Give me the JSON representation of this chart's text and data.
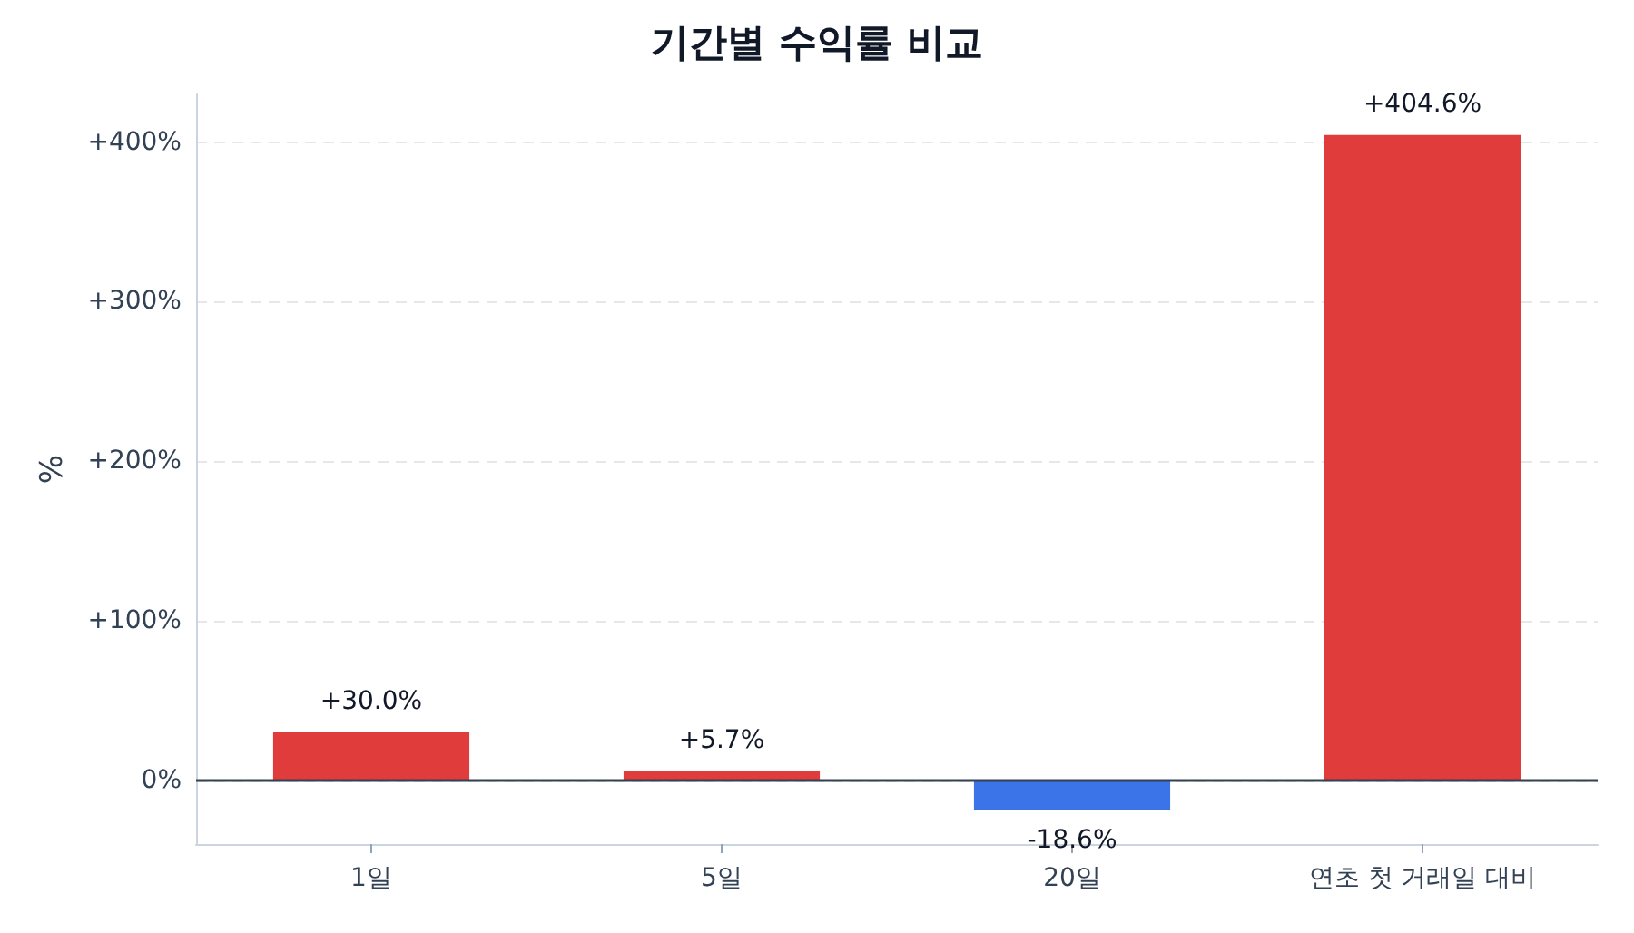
{
  "chart_data": {
    "type": "bar",
    "title": "기간별 수익률 비교",
    "ylabel": "%",
    "categories": [
      "1일",
      "5일",
      "20일",
      "연초 첫 거래일 대비"
    ],
    "values": [
      30.0,
      5.7,
      -18.6,
      404.6
    ],
    "colors": [
      "#e03c3c",
      "#e03c3c",
      "#3b73e8",
      "#e03c3c"
    ],
    "value_labels": [
      "+30.0%",
      "+5.7%",
      "-18.6%",
      "+404.6%"
    ],
    "ylim": [
      -40,
      430
    ],
    "yticks": [
      {
        "value": 0,
        "label": "0%"
      },
      {
        "value": 100,
        "label": "+100%"
      },
      {
        "value": 200,
        "label": "+200%"
      },
      {
        "value": 300,
        "label": "+300%"
      },
      {
        "value": 400,
        "label": "+400%"
      }
    ],
    "ref_lines": [
      {
        "axis": "y",
        "value": 0,
        "color": "#334155"
      }
    ],
    "grid": "y"
  }
}
